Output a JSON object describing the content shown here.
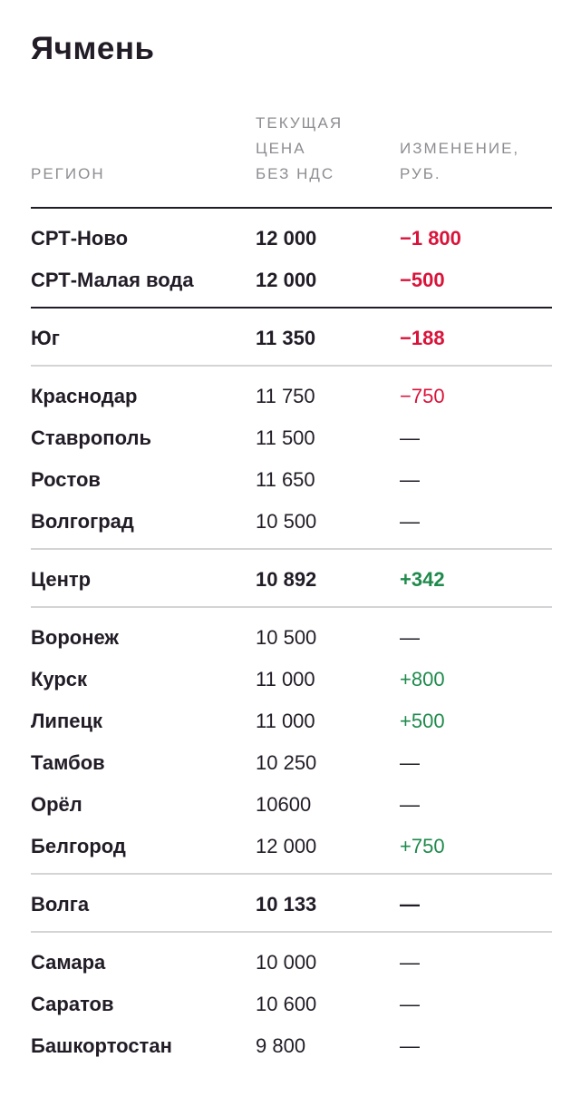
{
  "title": "Ячмень",
  "colors": {
    "text": "#221c26",
    "negative": "#d9133a",
    "positive": "#1f8a4c",
    "header": "#8e8c91"
  },
  "headers": {
    "region": [
      "РЕГИОН"
    ],
    "price": [
      "ТЕКУЩАЯ",
      "ЦЕНА",
      "БЕЗ НДС"
    ],
    "change": [
      "ИЗМЕНЕНИЕ,",
      "РУБ."
    ]
  },
  "sections": [
    {
      "type": "group",
      "border": "thick",
      "rows": [
        {
          "region": "СРТ-Ново",
          "price": "12 000",
          "change": "−1 800",
          "trend": "neg",
          "bold": true
        },
        {
          "region": "СРТ-Малая вода",
          "price": "12 000",
          "change": "−500",
          "trend": "neg",
          "bold": true
        }
      ]
    },
    {
      "type": "summary",
      "border": "thick",
      "rows": [
        {
          "region": "Юг",
          "price": "11 350",
          "change": "−188",
          "trend": "neg",
          "bold": true
        }
      ]
    },
    {
      "type": "group",
      "border": "thin",
      "rows": [
        {
          "region": "Краснодар",
          "price": "11 750",
          "change": "−750",
          "trend": "neg",
          "bold": false
        },
        {
          "region": "Ставрополь",
          "price": "11 500",
          "change": "—",
          "trend": "none",
          "bold": false
        },
        {
          "region": "Ростов",
          "price": "11 650",
          "change": "—",
          "trend": "none",
          "bold": false
        },
        {
          "region": "Волгоград",
          "price": "10 500",
          "change": "—",
          "trend": "none",
          "bold": false
        }
      ]
    },
    {
      "type": "summary",
      "border": "thin",
      "rows": [
        {
          "region": "Центр",
          "price": "10 892",
          "change": "+342",
          "trend": "pos",
          "bold": true
        }
      ]
    },
    {
      "type": "group",
      "border": "thin",
      "rows": [
        {
          "region": "Воронеж",
          "price": "10 500",
          "change": "—",
          "trend": "none",
          "bold": false
        },
        {
          "region": "Курск",
          "price": "11 000",
          "change": "+800",
          "trend": "pos",
          "bold": false
        },
        {
          "region": "Липецк",
          "price": "11 000",
          "change": "+500",
          "trend": "pos",
          "bold": false
        },
        {
          "region": "Тамбов",
          "price": "10 250",
          "change": "—",
          "trend": "none",
          "bold": false
        },
        {
          "region": "Орёл",
          "price": "10600",
          "change": "—",
          "trend": "none",
          "bold": false
        },
        {
          "region": "Белгород",
          "price": "12 000",
          "change": "+750",
          "trend": "pos",
          "bold": false
        }
      ]
    },
    {
      "type": "summary",
      "border": "thin",
      "rows": [
        {
          "region": "Волга",
          "price": "10 133",
          "change": "—",
          "trend": "none",
          "bold": true
        }
      ]
    },
    {
      "type": "group",
      "border": "thin",
      "rows": [
        {
          "region": "Самара",
          "price": "10 000",
          "change": "—",
          "trend": "none",
          "bold": false
        },
        {
          "region": "Саратов",
          "price": "10 600",
          "change": "—",
          "trend": "none",
          "bold": false
        },
        {
          "region": "Башкортостан",
          "price": "9 800",
          "change": "—",
          "trend": "none",
          "bold": false
        }
      ]
    }
  ]
}
